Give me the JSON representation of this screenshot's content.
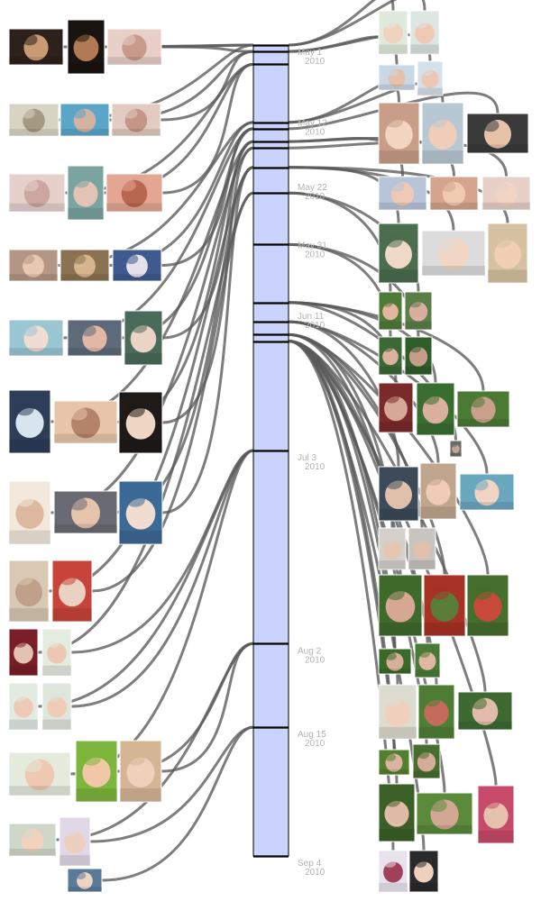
{
  "timeline": {
    "start_date": "2010-05-01",
    "end_date": "2010-09-04",
    "bar_fill": "#c9d3fb",
    "bar_stroke": "#000000",
    "label_color": "#b3b3b3",
    "connector_color": "#5a5a5a",
    "dates": [
      {
        "date": "2010-05-01",
        "label_line1": "May 1",
        "label_line2": "2010"
      },
      {
        "date": "2010-05-12",
        "label_line1": "May 12",
        "label_line2": "2010"
      },
      {
        "date": "2010-05-22",
        "label_line1": "May 22",
        "label_line2": "2010"
      },
      {
        "date": "2010-05-31",
        "label_line1": "May 31",
        "label_line2": "2010"
      },
      {
        "date": "2010-06-11",
        "label_line1": "Jun 11",
        "label_line2": "2010"
      },
      {
        "date": "2010-07-03",
        "label_line1": "Jul 3",
        "label_line2": "2010"
      },
      {
        "date": "2010-08-02",
        "label_line1": "Aug 2",
        "label_line2": "2010"
      },
      {
        "date": "2010-08-15",
        "label_line1": "Aug 15",
        "label_line2": "2010"
      },
      {
        "date": "2010-09-04",
        "label_line1": "Sep 4",
        "label_line2": "2010"
      }
    ],
    "event_dates": [
      "2010-05-01",
      "2010-05-02",
      "2010-05-04",
      "2010-05-13",
      "2010-05-14",
      "2010-05-16",
      "2010-05-17",
      "2010-05-20",
      "2010-05-24",
      "2010-06-01",
      "2010-06-10",
      "2010-06-13",
      "2010-06-15",
      "2010-06-16",
      "2010-07-03",
      "2010-08-02",
      "2010-08-15",
      "2010-09-04"
    ]
  },
  "photos": [
    {
      "side": "left",
      "date": "2010-05-01",
      "palette": [
        "#2e211c",
        "#c99a74"
      ]
    },
    {
      "side": "left",
      "date": "2010-05-01",
      "palette": [
        "#1a1410",
        "#b27a54"
      ]
    },
    {
      "side": "left",
      "date": "2010-05-02",
      "palette": [
        "#e8cfc8",
        "#c89a8c"
      ]
    },
    {
      "side": "left",
      "date": "2010-05-01",
      "palette": [
        "#d8d4c4",
        "#a49a84"
      ]
    },
    {
      "side": "left",
      "date": "2010-05-02",
      "palette": [
        "#5aa6c8",
        "#d2b2a0"
      ]
    },
    {
      "side": "left",
      "date": "2010-05-02",
      "palette": [
        "#e2cbc0",
        "#c59688"
      ]
    },
    {
      "side": "left",
      "date": "2010-05-04",
      "palette": [
        "#e6d0cc",
        "#cda5a1"
      ]
    },
    {
      "side": "left",
      "date": "2010-05-04",
      "palette": [
        "#7aa4a0",
        "#e3c4b4"
      ]
    },
    {
      "side": "left",
      "date": "2010-05-04",
      "palette": [
        "#e2a693",
        "#b8674f"
      ]
    },
    {
      "side": "left",
      "date": "2010-05-13",
      "palette": [
        "#b49684",
        "#e8c8b0"
      ]
    },
    {
      "side": "left",
      "date": "2010-05-13",
      "palette": [
        "#8a7252",
        "#d6b48c"
      ]
    },
    {
      "side": "left",
      "date": "2010-05-14",
      "palette": [
        "#3e5a8e",
        "#e6e0ea"
      ]
    },
    {
      "side": "left",
      "date": "2010-05-14",
      "palette": [
        "#9ac6d4",
        "#f0dcd2"
      ]
    },
    {
      "side": "left",
      "date": "2010-05-14",
      "palette": [
        "#5c6a7a",
        "#e2b8a4"
      ]
    },
    {
      "side": "left",
      "date": "2010-05-16",
      "palette": [
        "#4a6a5a",
        "#ead4c6"
      ]
    },
    {
      "side": "left",
      "date": "2010-05-16",
      "palette": [
        "#2e3d58",
        "#d8e4ee"
      ]
    },
    {
      "side": "left",
      "date": "2010-05-16",
      "palette": [
        "#e8c4a8",
        "#b4846a"
      ]
    },
    {
      "side": "left",
      "date": "2010-05-17",
      "palette": [
        "#1e1a18",
        "#eed6c4"
      ]
    },
    {
      "side": "left",
      "date": "2010-05-17",
      "palette": [
        "#f2e8dc",
        "#dcb8a0"
      ]
    },
    {
      "side": "left",
      "date": "2010-05-20",
      "palette": [
        "#6a6a74",
        "#e6c4ac"
      ]
    },
    {
      "side": "left",
      "date": "2010-05-20",
      "palette": [
        "#3c6a96",
        "#f0dcd0"
      ]
    },
    {
      "side": "left",
      "date": "2010-05-20",
      "palette": [
        "#d8c8b4",
        "#c0a08a"
      ]
    },
    {
      "side": "left",
      "date": "2010-05-24",
      "palette": [
        "#c8443a",
        "#e9d2c2"
      ]
    },
    {
      "side": "left",
      "date": "2010-05-24",
      "palette": [
        "#7a1e28",
        "#e2c2b0"
      ]
    },
    {
      "side": "left",
      "date": "2010-07-03",
      "palette": [
        "#e4ece0",
        "#ecc8b4"
      ]
    },
    {
      "side": "left",
      "date": "2010-07-03",
      "palette": [
        "#e2eae2",
        "#eecab6"
      ]
    },
    {
      "side": "left",
      "date": "2010-07-03",
      "palette": [
        "#dfe6dc",
        "#efccb6"
      ]
    },
    {
      "side": "left",
      "date": "2010-07-03",
      "palette": [
        "#e4eadc",
        "#eec8b0"
      ]
    },
    {
      "side": "left",
      "date": "2010-08-02",
      "palette": [
        "#7cb63c",
        "#f0c8a8"
      ]
    },
    {
      "side": "left",
      "date": "2010-08-02",
      "palette": [
        "#d4b696",
        "#f0d0b8"
      ]
    },
    {
      "side": "left",
      "date": "2010-08-02",
      "palette": [
        "#cfd8c8",
        "#f2d2bc"
      ]
    },
    {
      "side": "left",
      "date": "2010-08-15",
      "palette": [
        "#e0d8e6",
        "#eecebc"
      ]
    },
    {
      "side": "left",
      "date": "2010-08-15",
      "palette": [
        "#5a7a9a",
        "#f0d4c2"
      ]
    },
    {
      "side": "left",
      "date": "2010-09-04",
      "palette": [
        "#e8b8a8",
        "#d6846c"
      ]
    },
    {
      "side": "right",
      "date": "2010-05-01",
      "palette": [
        "#e0eadc",
        "#f0d2c0"
      ]
    },
    {
      "side": "right",
      "date": "2010-05-01",
      "palette": [
        "#dde6e2",
        "#eecab6"
      ]
    },
    {
      "side": "right",
      "date": "2010-05-02",
      "palette": [
        "#c8d8e6",
        "#e6c0a8"
      ]
    },
    {
      "side": "right",
      "date": "2010-05-02",
      "palette": [
        "#d4e0ea",
        "#ecc8b4"
      ]
    },
    {
      "side": "right",
      "date": "2010-05-13",
      "palette": [
        "#c89e88",
        "#f2d4c0"
      ]
    },
    {
      "side": "right",
      "date": "2010-05-13",
      "palette": [
        "#b8c8d2",
        "#f0cdb8"
      ]
    },
    {
      "side": "right",
      "date": "2010-05-14",
      "palette": [
        "#3a3a3a",
        "#e6c2a8"
      ]
    },
    {
      "side": "right",
      "date": "2010-05-16",
      "palette": [
        "#b8c4d8",
        "#eecab6"
      ]
    },
    {
      "side": "right",
      "date": "2010-05-16",
      "palette": [
        "#d4a48c",
        "#f0cab0"
      ]
    },
    {
      "side": "right",
      "date": "2010-05-17",
      "palette": [
        "#e6d0c8",
        "#f2d4c4"
      ]
    },
    {
      "side": "right",
      "date": "2010-05-20",
      "palette": [
        "#4a6e4e",
        "#f0d8c8"
      ]
    },
    {
      "side": "right",
      "date": "2010-05-20",
      "palette": [
        "#dcdcdc",
        "#f2d6c4"
      ]
    },
    {
      "side": "right",
      "date": "2010-05-20",
      "palette": [
        "#d6c2a2",
        "#f0cfb4"
      ]
    },
    {
      "side": "right",
      "date": "2010-05-24",
      "palette": [
        "#4e7a3a",
        "#e2b6a0"
      ]
    },
    {
      "side": "right",
      "date": "2010-05-24",
      "palette": [
        "#5a7e48",
        "#d8aea0"
      ]
    },
    {
      "side": "right",
      "date": "2010-06-01",
      "palette": [
        "#3c6a36",
        "#dcb29e"
      ]
    },
    {
      "side": "right",
      "date": "2010-06-01",
      "palette": [
        "#2e5e2a",
        "#c89c8a"
      ]
    },
    {
      "side": "right",
      "date": "2010-06-10",
      "palette": [
        "#7a2a2a",
        "#d6a896"
      ]
    },
    {
      "side": "right",
      "date": "2010-06-10",
      "palette": [
        "#3a6e30",
        "#d8b09c"
      ]
    },
    {
      "side": "right",
      "date": "2010-06-10",
      "palette": [
        "#4a7a34",
        "#c8a08c"
      ]
    },
    {
      "side": "right",
      "date": "2010-06-10",
      "palette": [
        "#6a6a6a",
        "#c4a494"
      ]
    },
    {
      "side": "right",
      "date": "2010-06-13",
      "palette": [
        "#3c4a5a",
        "#e0c0aa"
      ]
    },
    {
      "side": "right",
      "date": "2010-06-13",
      "palette": [
        "#c0a68e",
        "#f0ccb6"
      ]
    },
    {
      "side": "right",
      "date": "2010-06-13",
      "palette": [
        "#6aa8c0",
        "#f2d4c2"
      ]
    },
    {
      "side": "right",
      "date": "2010-06-15",
      "palette": [
        "#d4d0cc",
        "#e6c6b2"
      ]
    },
    {
      "side": "right",
      "date": "2010-06-15",
      "palette": [
        "#c8c4c0",
        "#e2c0ae"
      ]
    },
    {
      "side": "right",
      "date": "2010-06-15",
      "palette": [
        "#3e6a2c",
        "#d6a894"
      ]
    },
    {
      "side": "right",
      "date": "2010-06-15",
      "palette": [
        "#a83226",
        "#5a7e3a"
      ]
    },
    {
      "side": "right",
      "date": "2010-06-15",
      "palette": [
        "#466e2e",
        "#c84a3a"
      ]
    },
    {
      "side": "right",
      "date": "2010-06-16",
      "palette": [
        "#3a6a2a",
        "#d8b09a"
      ]
    },
    {
      "side": "right",
      "date": "2010-06-16",
      "palette": [
        "#4a7a36",
        "#e0b8a2"
      ]
    },
    {
      "side": "right",
      "date": "2010-06-16",
      "palette": [
        "#dcdcd0",
        "#f0cfbc"
      ]
    },
    {
      "side": "right",
      "date": "2010-06-16",
      "palette": [
        "#4e7e34",
        "#c66a5c"
      ]
    },
    {
      "side": "right",
      "date": "2010-06-16",
      "palette": [
        "#3c6a30",
        "#e2bcaa"
      ]
    },
    {
      "side": "right",
      "date": "2010-06-16",
      "palette": [
        "#52802e",
        "#dab4a0"
      ]
    },
    {
      "side": "right",
      "date": "2010-06-16",
      "palette": [
        "#476e2e",
        "#d4ac98"
      ]
    },
    {
      "side": "right",
      "date": "2010-06-16",
      "palette": [
        "#3a6028",
        "#e0bca6"
      ]
    },
    {
      "side": "right",
      "date": "2010-06-16",
      "palette": [
        "#5a8a3a",
        "#d2a894"
      ]
    },
    {
      "side": "right",
      "date": "2010-06-16",
      "palette": [
        "#c84a6a",
        "#e6c2ae"
      ]
    },
    {
      "side": "right",
      "date": "2010-06-16",
      "palette": [
        "#e8e2ec",
        "#a0405a"
      ]
    },
    {
      "side": "right",
      "date": "2010-06-16",
      "palette": [
        "#2a2a2a",
        "#eed0bc"
      ]
    },
    {
      "side": "right",
      "date": "2010-06-16",
      "palette": [
        "#262626",
        "#ecccb8"
      ]
    }
  ]
}
